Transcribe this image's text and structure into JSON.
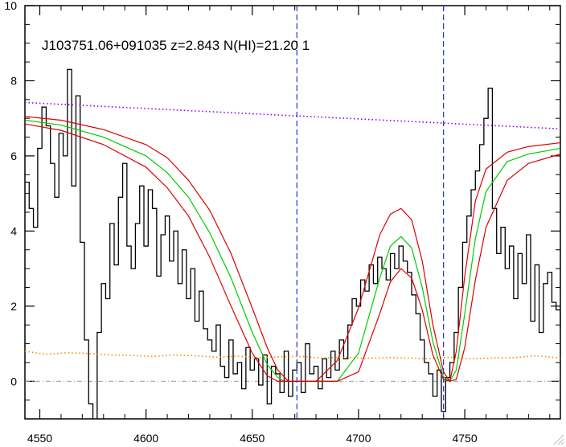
{
  "chart_data": {
    "type": "line",
    "title": "",
    "xlabel": "",
    "ylabel": "",
    "xlim": [
      4543,
      4795
    ],
    "ylim": [
      -1,
      10
    ],
    "grid": false,
    "legend": "none",
    "annotation": "J103751.06+091035 z=2.843 N(HI)=21.20 1",
    "xticks": [
      4550,
      4600,
      4650,
      4700,
      4750
    ],
    "xtick_labels": [
      "4550",
      "4600",
      "4650",
      "4700",
      "4750"
    ],
    "yticks": [
      0,
      2,
      4,
      6,
      8,
      10
    ],
    "ytick_labels": [
      "0",
      "2",
      "4",
      "6",
      "8",
      "10"
    ],
    "vlines": [
      4671,
      4740
    ],
    "reference_line": {
      "y": 0,
      "style": "dash-dot",
      "color": "#999999"
    },
    "series": [
      {
        "style": "step",
        "color": "#000000",
        "x": [
          4543,
          4545,
          4547,
          4549,
          4551,
          4553,
          4555,
          4557,
          4559,
          4561,
          4563,
          4565,
          4567,
          4569,
          4571,
          4573,
          4575,
          4577,
          4579,
          4581,
          4583,
          4585,
          4587,
          4589,
          4591,
          4593,
          4595,
          4597,
          4599,
          4601,
          4603,
          4605,
          4607,
          4609,
          4611,
          4613,
          4615,
          4617,
          4619,
          4621,
          4623,
          4625,
          4627,
          4629,
          4631,
          4633,
          4635,
          4637,
          4639,
          4641,
          4643,
          4645,
          4647,
          4649,
          4651,
          4653,
          4655,
          4657,
          4659,
          4661,
          4663,
          4665,
          4667,
          4669,
          4671,
          4673,
          4675,
          4677,
          4679,
          4681,
          4683,
          4685,
          4687,
          4689,
          4691,
          4693,
          4695,
          4697,
          4699,
          4701,
          4703,
          4705,
          4707,
          4709,
          4711,
          4713,
          4715,
          4717,
          4719,
          4721,
          4723,
          4725,
          4727,
          4729,
          4731,
          4733,
          4735,
          4737,
          4739,
          4741,
          4743,
          4745,
          4747,
          4749,
          4751,
          4753,
          4755,
          4757,
          4759,
          4761,
          4763,
          4765,
          4767,
          4769,
          4771,
          4773,
          4775,
          4777,
          4779,
          4781,
          4783,
          4785,
          4787,
          4789,
          4791,
          4793,
          4795
        ],
        "y": [
          5.3,
          4.6,
          4.1,
          6.2,
          7.3,
          6.8,
          5.8,
          4.9,
          6.6,
          6.0,
          8.3,
          5.2,
          7.6,
          3.7,
          1.1,
          -0.6,
          -1.2,
          1.3,
          2.6,
          2.2,
          4.2,
          3.1,
          4.9,
          5.8,
          3.6,
          3.0,
          4.2,
          5.2,
          3.6,
          5.1,
          4.6,
          2.8,
          3.9,
          4.4,
          3.2,
          4.0,
          2.6,
          3.5,
          2.2,
          3.0,
          1.6,
          2.4,
          1.4,
          1.1,
          0.8,
          1.5,
          0.4,
          0.1,
          1.1,
          0.2,
          0.5,
          -0.2,
          0.9,
          0.3,
          0.6,
          -0.1,
          0.7,
          -0.6,
          0.4,
          0.2,
          -0.3,
          0.8,
          -0.4,
          0.3,
          0.5,
          -0.3,
          1.0,
          0.2,
          0.4,
          -0.2,
          0.6,
          0.1,
          0.8,
          0.3,
          1.1,
          0.6,
          1.5,
          2.2,
          2.0,
          2.7,
          2.4,
          3.1,
          2.6,
          3.3,
          3.0,
          2.7,
          3.4,
          3.0,
          3.6,
          3.2,
          2.9,
          2.3,
          1.8,
          1.1,
          0.5,
          0.2,
          -0.4,
          0.3,
          -0.8,
          0.1,
          0.5,
          1.3,
          2.5,
          3.7,
          4.4,
          5.1,
          5.6,
          6.3,
          7.0,
          7.8,
          4.6,
          3.4,
          4.1,
          3.0,
          3.6,
          2.2,
          3.4,
          2.6,
          3.9,
          1.6,
          3.1,
          1.3,
          2.6,
          2.9,
          2.1,
          1.9,
          1.4
        ]
      },
      {
        "style": "dotted",
        "color": "#8800ff",
        "x": [
          4543,
          4795
        ],
        "y": [
          7.42,
          6.72
        ]
      },
      {
        "style": "dotted",
        "color": "#ff8800",
        "x": [
          4543,
          4553,
          4563,
          4573,
          4583,
          4593,
          4603,
          4613,
          4623,
          4633,
          4643,
          4653,
          4663,
          4673,
          4683,
          4693,
          4703,
          4713,
          4723,
          4733,
          4743,
          4753,
          4763,
          4773,
          4783,
          4795
        ],
        "y": [
          0.8,
          0.72,
          0.76,
          0.74,
          0.7,
          0.69,
          0.66,
          0.7,
          0.68,
          0.64,
          0.67,
          0.63,
          0.65,
          0.66,
          0.62,
          0.64,
          0.61,
          0.63,
          0.62,
          0.6,
          0.64,
          0.6,
          0.62,
          0.63,
          0.68,
          0.62
        ]
      },
      {
        "style": "line",
        "color": "#00cc00",
        "x": [
          4543,
          4560,
          4580,
          4600,
          4610,
          4620,
          4630,
          4640,
          4650,
          4657,
          4662,
          4665,
          4670,
          4680,
          4690,
          4700,
          4710,
          4715,
          4720,
          4725,
          4730,
          4735,
          4740,
          4743,
          4746,
          4750,
          4755,
          4760,
          4770,
          4780,
          4795
        ],
        "y": [
          6.95,
          6.82,
          6.5,
          6.0,
          5.55,
          4.9,
          3.95,
          2.75,
          1.3,
          0.45,
          0.1,
          0.0,
          0.0,
          0.0,
          0.0,
          0.75,
          2.75,
          3.6,
          3.85,
          3.55,
          2.5,
          1.05,
          0.12,
          0.0,
          0.3,
          1.8,
          3.8,
          5.05,
          5.85,
          6.05,
          6.2
        ]
      },
      {
        "style": "line",
        "color": "#dd0000",
        "x": [
          4543,
          4560,
          4580,
          4600,
          4610,
          4620,
          4630,
          4640,
          4650,
          4657,
          4662,
          4667,
          4672,
          4680,
          4690,
          4700,
          4710,
          4715,
          4720,
          4725,
          4730,
          4735,
          4740,
          4743,
          4746,
          4750,
          4755,
          4760,
          4770,
          4780,
          4795
        ],
        "y": [
          7.05,
          6.95,
          6.7,
          6.3,
          5.95,
          5.35,
          4.55,
          3.4,
          1.95,
          0.9,
          0.3,
          0.0,
          0.0,
          0.0,
          0.55,
          1.95,
          3.9,
          4.45,
          4.6,
          4.3,
          3.2,
          1.5,
          0.25,
          0.0,
          0.8,
          2.8,
          4.8,
          5.65,
          6.1,
          6.25,
          6.35
        ]
      },
      {
        "style": "line",
        "color": "#dd0000",
        "x": [
          4543,
          4560,
          4580,
          4600,
          4610,
          4620,
          4630,
          4640,
          4650,
          4657,
          4662,
          4665,
          4670,
          4680,
          4690,
          4700,
          4710,
          4715,
          4720,
          4725,
          4730,
          4735,
          4740,
          4743,
          4746,
          4750,
          4755,
          4760,
          4770,
          4780,
          4795
        ],
        "y": [
          6.85,
          6.68,
          6.3,
          5.7,
          5.15,
          4.4,
          3.3,
          2.0,
          0.75,
          0.15,
          0.0,
          0.0,
          0.0,
          0.0,
          0.0,
          0.25,
          1.8,
          2.65,
          3.0,
          2.75,
          1.9,
          0.7,
          0.05,
          0.0,
          0.05,
          0.9,
          2.7,
          4.1,
          5.35,
          5.8,
          6.05
        ]
      }
    ]
  }
}
